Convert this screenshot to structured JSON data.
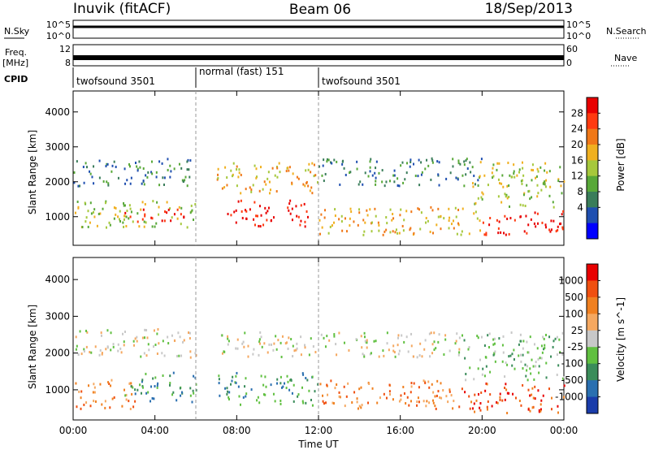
{
  "header": {
    "title": "Inuvik (fitACF)",
    "beam": "Beam 06",
    "date": "18/Sep/2013"
  },
  "labels": {
    "nsky": "N.Sky",
    "freq": "Freq.",
    "mhz": "[MHz]",
    "cpid": "CPID",
    "nsearch": "N.Search",
    "nave": "Nave",
    "nsky_top": "10^5",
    "nsky_bottom": "10^0",
    "freq_top": "12",
    "freq_bottom": "8",
    "nave_top": "60",
    "nave_bottom": "0"
  },
  "cpid_segments": [
    {
      "label": "twofsound 3501",
      "start": 0,
      "end": 6
    },
    {
      "label": "normal (fast) 151",
      "start": 6,
      "end": 12
    },
    {
      "label": "twofsound 3501",
      "start": 12,
      "end": 24
    }
  ],
  "chart_data": [
    {
      "type": "heatmap",
      "name": "power",
      "xlabel": "Time UT",
      "ylabel": "Slant Range [km]",
      "xlim": [
        0,
        24
      ],
      "ylim": [
        180,
        4600
      ],
      "x_ticks": [
        0,
        4,
        8,
        12,
        16,
        20,
        24
      ],
      "x_tick_labels": [
        "00:00",
        "04:00",
        "08:00",
        "12:00",
        "16:00",
        "20:00",
        "00:00"
      ],
      "y_ticks": [
        1000,
        2000,
        3000,
        4000
      ],
      "y_tick_labels": [
        "1000",
        "2000",
        "3000",
        "4000"
      ],
      "colorbar_label": "Power [dB]",
      "colorbar_ticks": [
        "4",
        "8",
        "12",
        "16",
        "20",
        "24",
        "28"
      ],
      "colorbar_colors": [
        "#0000ff",
        "#1f4fb0",
        "#3a7d5a",
        "#58a838",
        "#a6c83c",
        "#f0b020",
        "#f07818",
        "#ff3a10",
        "#e80000"
      ],
      "scatter_bands": [
        {
          "t0": 0.0,
          "t1": 6.0,
          "r0": 1900,
          "r1": 2700,
          "level": 2
        },
        {
          "t0": 0.0,
          "t1": 6.0,
          "r0": 700,
          "r1": 1500,
          "level": 4
        },
        {
          "t0": 2.5,
          "t1": 5.5,
          "r0": 850,
          "r1": 1250,
          "level": 8
        },
        {
          "t0": 7.0,
          "t1": 12.0,
          "r0": 1700,
          "r1": 2600,
          "level": 5
        },
        {
          "t0": 7.5,
          "t1": 11.5,
          "r0": 750,
          "r1": 1500,
          "level": 8
        },
        {
          "t0": 12.0,
          "t1": 20.0,
          "r0": 1900,
          "r1": 2700,
          "level": 2
        },
        {
          "t0": 12.0,
          "t1": 20.0,
          "r0": 500,
          "r1": 1300,
          "level": 5
        },
        {
          "t0": 19.5,
          "t1": 24.0,
          "r0": 1300,
          "r1": 2600,
          "level": 4
        },
        {
          "t0": 20.0,
          "t1": 24.0,
          "r0": 500,
          "r1": 1200,
          "level": 8
        }
      ]
    },
    {
      "type": "heatmap",
      "name": "velocity",
      "xlabel": "Time UT",
      "ylabel": "Slant Range [km]",
      "xlim": [
        0,
        24
      ],
      "ylim": [
        180,
        4600
      ],
      "x_ticks": [
        0,
        4,
        8,
        12,
        16,
        20,
        24
      ],
      "x_tick_labels": [
        "00:00",
        "04:00",
        "08:00",
        "12:00",
        "16:00",
        "20:00",
        "00:00"
      ],
      "y_ticks": [
        1000,
        2000,
        3000,
        4000
      ],
      "y_tick_labels": [
        "1000",
        "2000",
        "3000",
        "4000"
      ],
      "colorbar_label": "Velocity [m s^-1]",
      "colorbar_ticks": [
        "1000",
        "500",
        "100",
        "25",
        "-25",
        "-100",
        "-500",
        "-1000"
      ],
      "colorbar_colors": [
        "#1a3caa",
        "#2a6fb0",
        "#3a8c5a",
        "#60c040",
        "#c8c8c8",
        "#f5a860",
        "#f08020",
        "#f05010",
        "#e80000"
      ],
      "scatter_bands": [
        {
          "t0": 0.0,
          "t1": 6.0,
          "r0": 1900,
          "r1": 2700,
          "level": 4
        },
        {
          "t0": 0.0,
          "t1": 3.0,
          "r0": 500,
          "r1": 1300,
          "level": 6
        },
        {
          "t0": 2.5,
          "t1": 6.0,
          "r0": 700,
          "r1": 1500,
          "level": 2
        },
        {
          "t0": 7.0,
          "t1": 12.0,
          "r0": 1900,
          "r1": 2600,
          "level": 4
        },
        {
          "t0": 7.0,
          "t1": 12.0,
          "r0": 600,
          "r1": 1500,
          "level": 2
        },
        {
          "t0": 12.0,
          "t1": 19.0,
          "r0": 1900,
          "r1": 2600,
          "level": 4
        },
        {
          "t0": 12.0,
          "t1": 19.0,
          "r0": 500,
          "r1": 1300,
          "level": 6
        },
        {
          "t0": 19.0,
          "t1": 24.0,
          "r0": 1300,
          "r1": 2600,
          "level": 3
        },
        {
          "t0": 19.0,
          "t1": 24.0,
          "r0": 400,
          "r1": 1200,
          "level": 7
        }
      ]
    }
  ]
}
